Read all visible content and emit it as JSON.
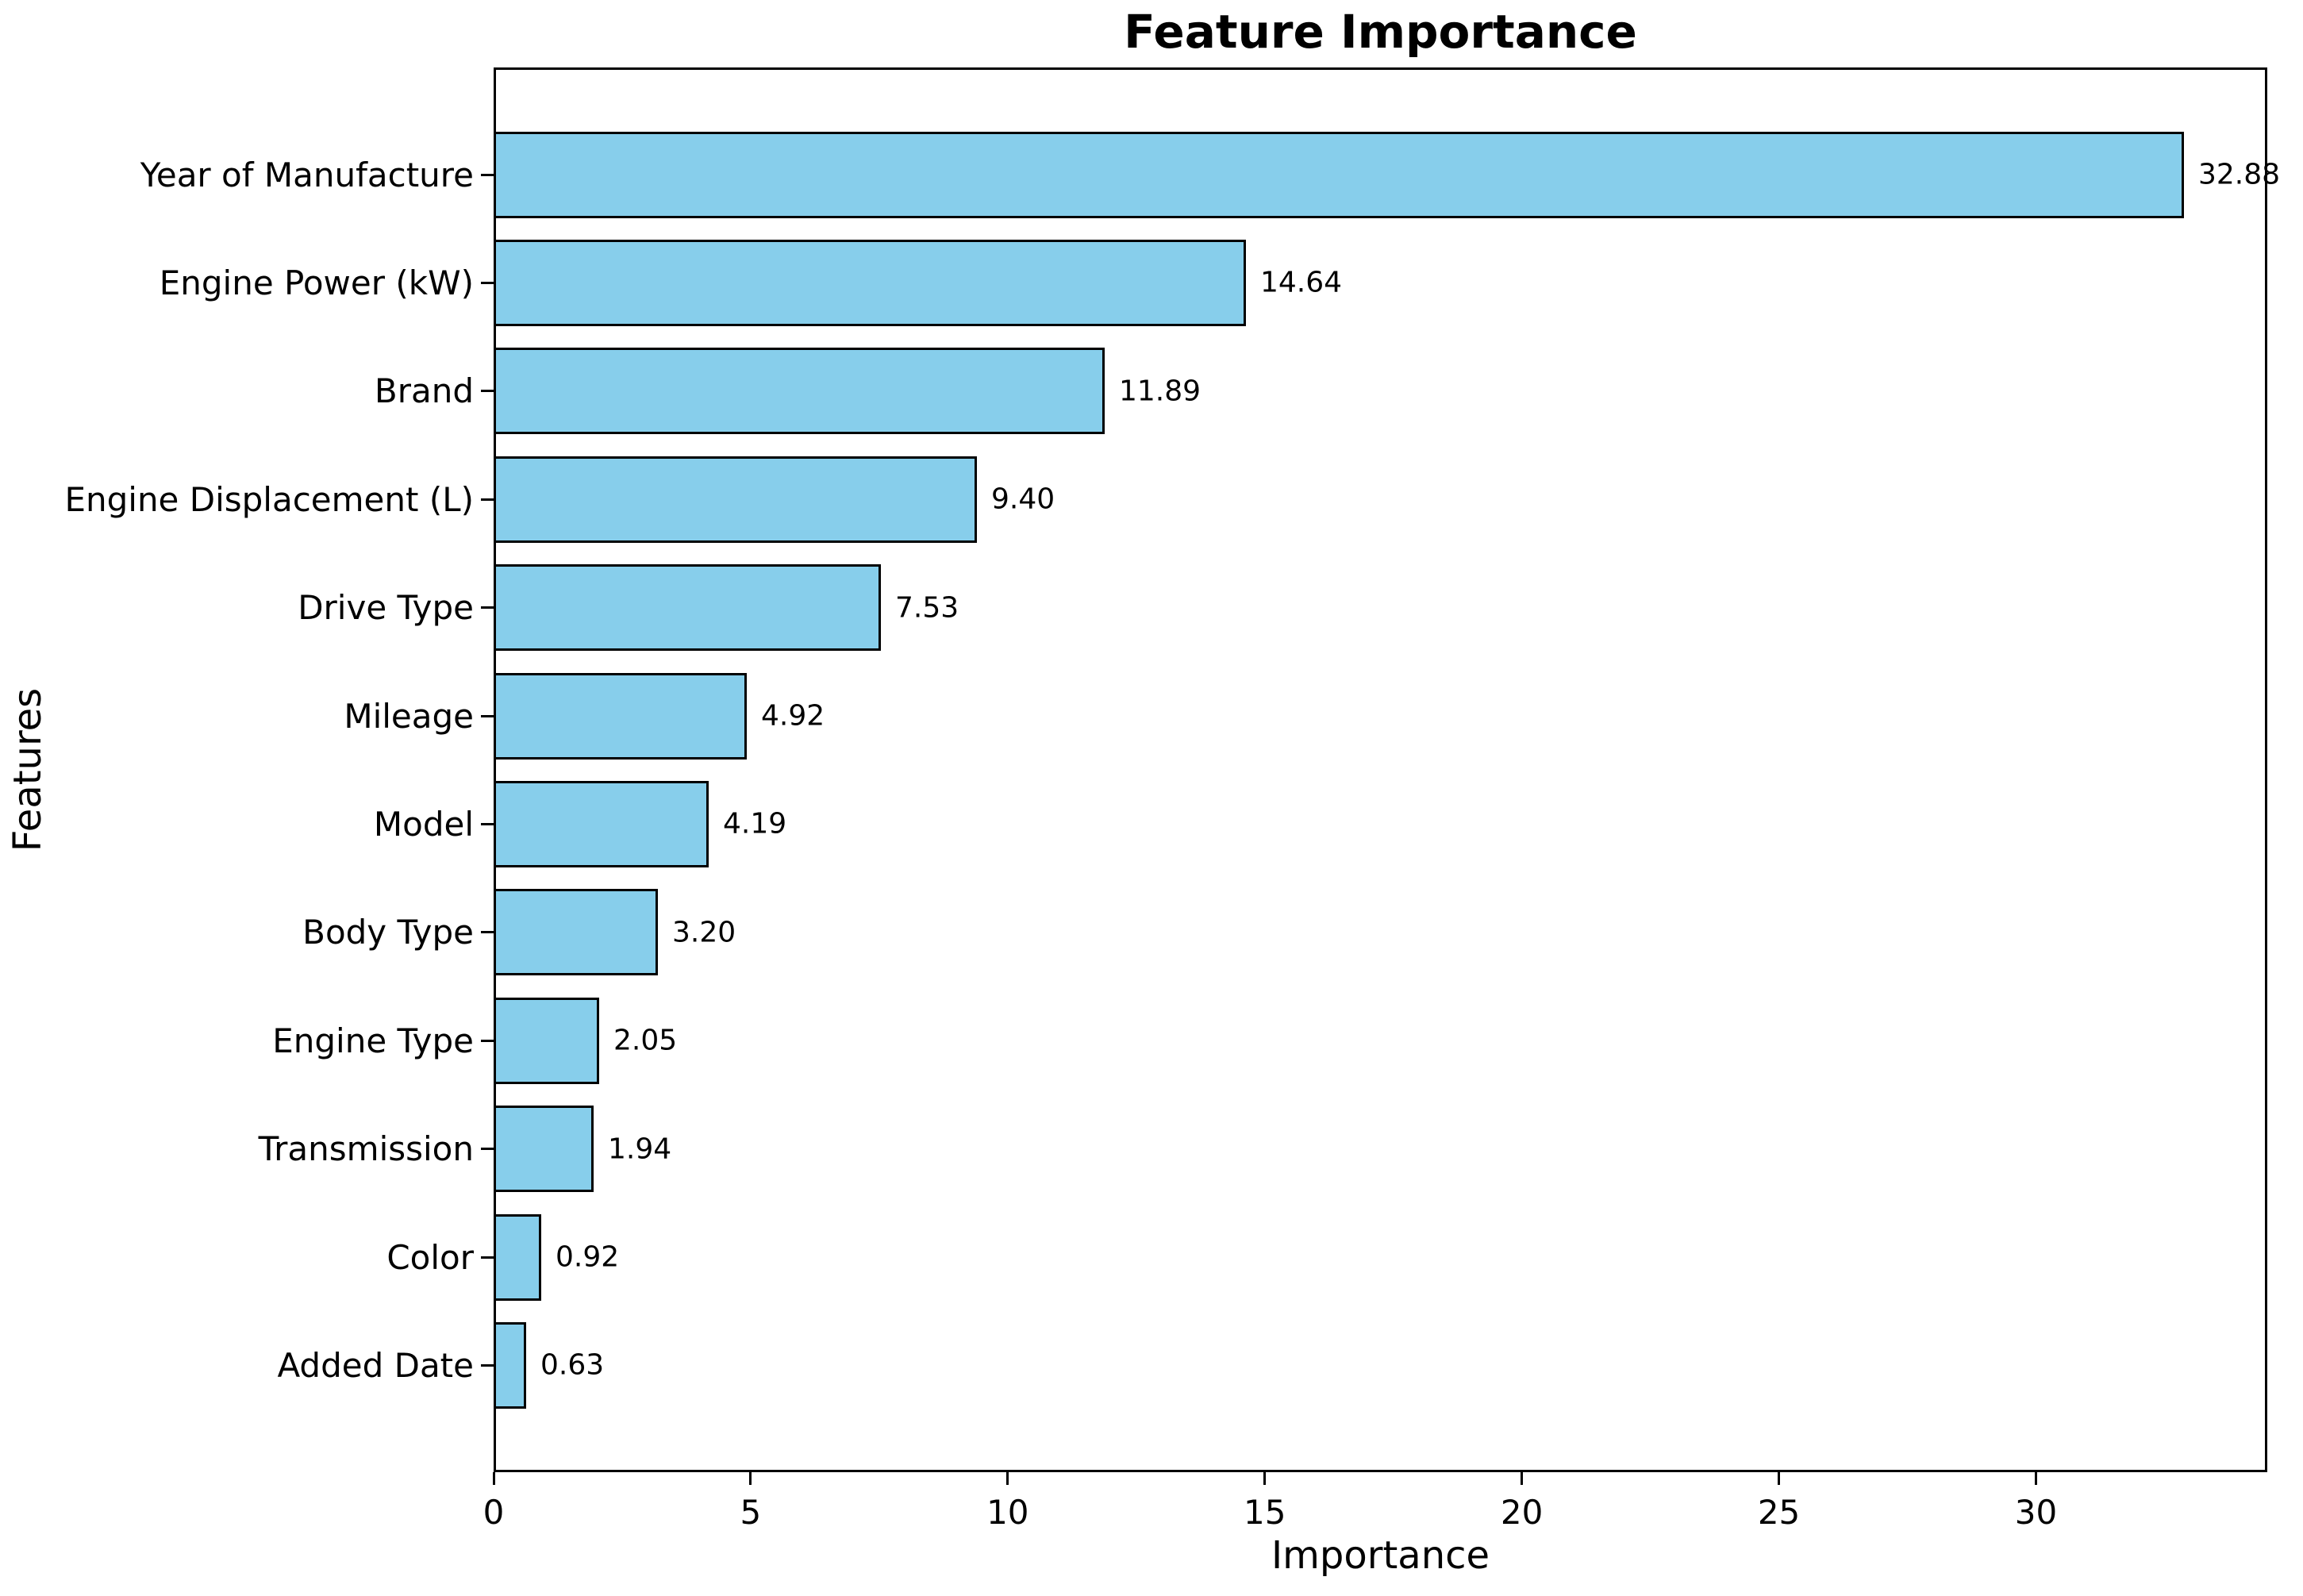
{
  "title": "Feature Importance",
  "chart_data": {
    "type": "bar",
    "orientation": "horizontal",
    "title": "Feature Importance",
    "xlabel": "Importance",
    "ylabel": "Features",
    "categories": [
      "Year of Manufacture",
      "Engine Power (kW)",
      "Brand",
      "Engine Displacement (L)",
      "Drive Type",
      "Mileage",
      "Model",
      "Body Type",
      "Engine Type",
      "Transmission",
      "Color",
      "Added Date"
    ],
    "values": [
      32.88,
      14.64,
      11.89,
      9.4,
      7.53,
      4.92,
      4.19,
      3.2,
      2.05,
      1.94,
      0.92,
      0.63
    ],
    "value_labels": [
      "32.88",
      "14.64",
      "11.89",
      "9.40",
      "7.53",
      "4.92",
      "4.19",
      "3.20",
      "2.05",
      "1.94",
      "0.92",
      "0.63"
    ],
    "xlim": [
      0,
      34.5
    ],
    "xticks": [
      0,
      5,
      10,
      15,
      20,
      25,
      30
    ],
    "xtick_labels": [
      "0",
      "5",
      "10",
      "15",
      "20",
      "25",
      "30"
    ],
    "grid": false,
    "legend": "none",
    "bar_color": "#87CEEB",
    "bar_edge_color": "#000000",
    "background_color": "#FFFFFF",
    "text_color": "#000000"
  }
}
